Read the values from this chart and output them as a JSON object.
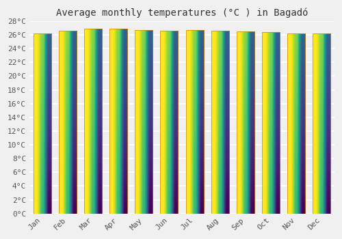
{
  "title": "Average monthly temperatures (°C ) in Bagadó",
  "months": [
    "Jan",
    "Feb",
    "Mar",
    "Apr",
    "May",
    "Jun",
    "Jul",
    "Aug",
    "Sep",
    "Oct",
    "Nov",
    "Dec"
  ],
  "temperatures": [
    26.2,
    26.6,
    26.9,
    26.9,
    26.7,
    26.6,
    26.7,
    26.6,
    26.5,
    26.4,
    26.2,
    26.2
  ],
  "bar_color": "#FFAA00",
  "bar_color_light": "#FFD050",
  "ylim": [
    0,
    28
  ],
  "yticks": [
    0,
    2,
    4,
    6,
    8,
    10,
    12,
    14,
    16,
    18,
    20,
    22,
    24,
    26,
    28
  ],
  "background_color": "#f0f0f0",
  "grid_color": "#ffffff",
  "title_fontsize": 10,
  "tick_fontsize": 8,
  "bar_edge_color": "#CC8800"
}
